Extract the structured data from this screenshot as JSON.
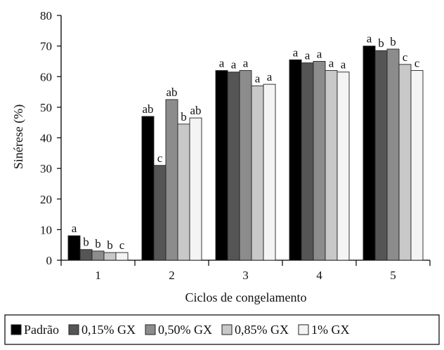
{
  "chart_data": {
    "type": "bar",
    "title": "",
    "xlabel": "Ciclos de congelamento",
    "ylabel": "Sinérese (%)",
    "ylim": [
      0,
      80
    ],
    "yticks": [
      0,
      10,
      20,
      30,
      40,
      50,
      60,
      70,
      80
    ],
    "categories": [
      "1",
      "2",
      "3",
      "4",
      "5"
    ],
    "legend_position": "bottom",
    "series": [
      {
        "name": "Padrão",
        "color": "#000000",
        "values": [
          8.0,
          47.0,
          62.0,
          65.5,
          70.0
        ],
        "labels": [
          "a",
          "ab",
          "a",
          "a",
          "a"
        ]
      },
      {
        "name": "0,15% GX",
        "color": "#555555",
        "values": [
          3.5,
          31.0,
          61.5,
          64.5,
          68.5
        ],
        "labels": [
          "b",
          "c",
          "a",
          "a",
          "b"
        ]
      },
      {
        "name": "0,50% GX",
        "color": "#8c8c8c",
        "values": [
          3.0,
          52.5,
          62.0,
          65.0,
          69.0
        ],
        "labels": [
          "b",
          "ab",
          "a",
          "a",
          "b"
        ]
      },
      {
        "name": "0,85% GX",
        "color": "#c8c8c8",
        "values": [
          2.5,
          44.5,
          57.0,
          62.0,
          64.0
        ],
        "labels": [
          "b",
          "b",
          "a",
          "a",
          "c"
        ]
      },
      {
        "name": "1% GX",
        "color": "#f4f4f4",
        "values": [
          2.5,
          46.5,
          57.5,
          61.5,
          62.0
        ],
        "labels": [
          "c",
          "ab",
          "a",
          "a",
          "c"
        ]
      }
    ]
  }
}
